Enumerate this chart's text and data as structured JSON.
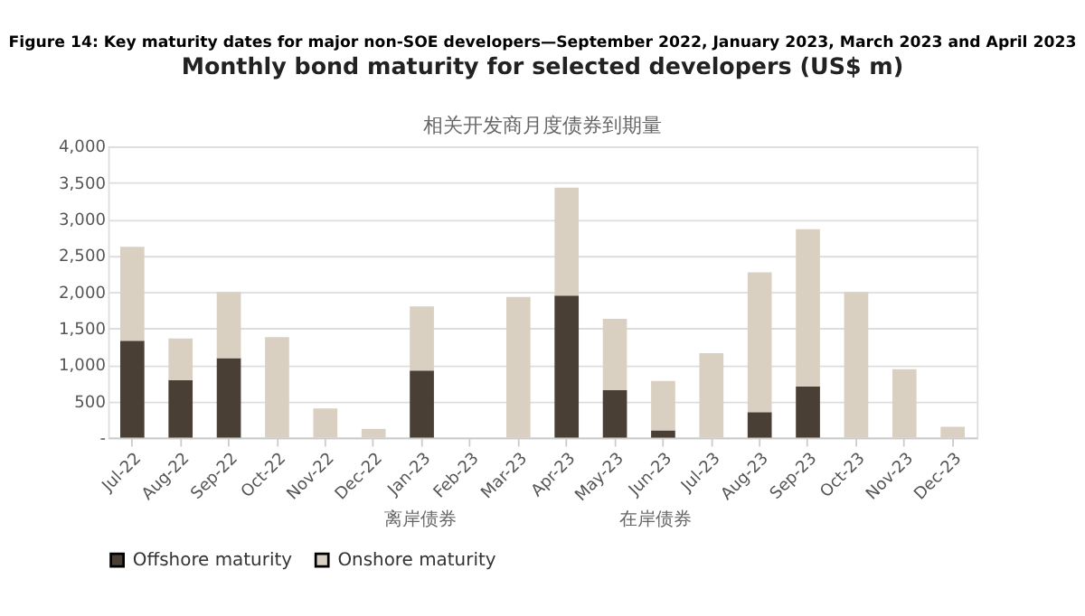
{
  "chart_data": {
    "type": "bar",
    "stacked": true,
    "title": "Figure 14: Key maturity dates for major non-SOE developers—September 2022, January 2023, March 2023 and April 2023",
    "subtitle": "Monthly bond maturity for selected developers (US$ m)",
    "categories": [
      "Jul-22",
      "Aug-22",
      "Sep-22",
      "Oct-22",
      "Nov-22",
      "Dec-22",
      "Jan-23",
      "Feb-23",
      "Mar-23",
      "Apr-23",
      "May-23",
      "Jun-23",
      "Jul-23",
      "Aug-23",
      "Sep-23",
      "Oct-23",
      "Nov-23",
      "Dec-23"
    ],
    "series": [
      {
        "name": "Offshore maturity",
        "color": "#4a3f35",
        "values": [
          1330,
          790,
          1090,
          0,
          0,
          0,
          920,
          0,
          0,
          1950,
          650,
          100,
          0,
          350,
          700,
          0,
          0,
          0
        ]
      },
      {
        "name": "Onshore maturity",
        "color": "#d9d0c1",
        "values": [
          1290,
          570,
          910,
          1380,
          400,
          120,
          880,
          0,
          1930,
          1480,
          980,
          680,
          1160,
          1920,
          2160,
          2000,
          940,
          150
        ]
      }
    ],
    "ylim": [
      0,
      4000
    ],
    "yticks": [
      {
        "value": 0,
        "label": "-"
      },
      500,
      {
        "value": 1000,
        "label": "1,000"
      },
      {
        "value": 1500,
        "label": "1,500"
      },
      {
        "value": 2000,
        "label": "2,000"
      },
      {
        "value": 2500,
        "label": "2,500"
      },
      {
        "value": 3000,
        "label": "3,000"
      },
      {
        "value": 3500,
        "label": "3,500"
      },
      {
        "value": 4000,
        "label": "4,000"
      }
    ],
    "grid": "y",
    "legend": "bottom",
    "annotations": [
      "相关开发商月度债券到期量",
      "离岸债券",
      "在岸债券"
    ]
  }
}
